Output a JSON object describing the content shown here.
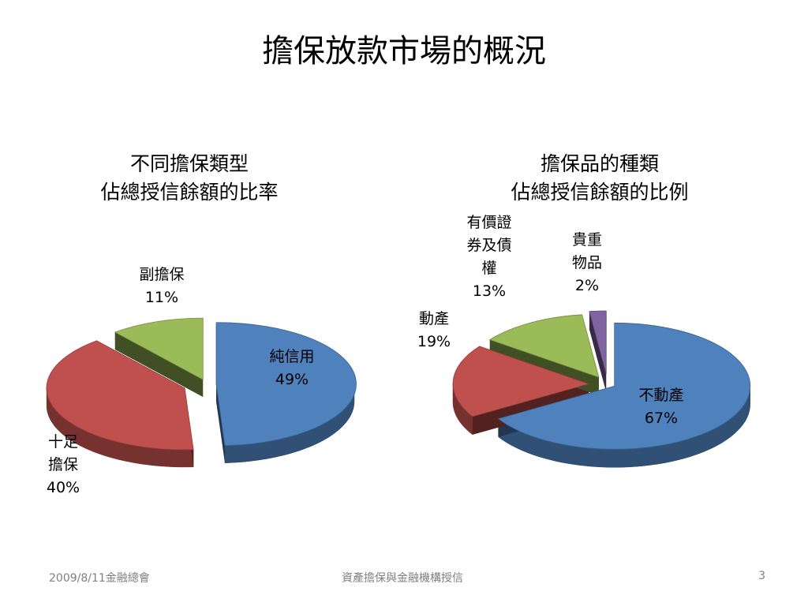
{
  "slide": {
    "title": "擔保放款市場的概況",
    "footer_left": "2009/8/11金融總會",
    "footer_center": "資產擔保與金融機構授信",
    "page_number": "3"
  },
  "chart_data": [
    {
      "type": "pie",
      "title_lines": [
        "不同擔保類型",
        "佔總授信餘額的比率"
      ],
      "slices": [
        {
          "label_lines": [
            "純信用"
          ],
          "value": 49,
          "value_label": "49%",
          "color": "#4f81bd"
        },
        {
          "label_lines": [
            "十足",
            "擔保"
          ],
          "value": 40,
          "value_label": "40%",
          "color": "#c0504d"
        },
        {
          "label_lines": [
            "副擔保"
          ],
          "value": 11,
          "value_label": "11%",
          "color": "#9bbb59"
        }
      ],
      "style": "3d exploded pie"
    },
    {
      "type": "pie",
      "title_lines": [
        "擔保品的種類",
        "佔總授信餘額的比例"
      ],
      "slices": [
        {
          "label_lines": [
            "不動產"
          ],
          "value": 67,
          "value_label": "67%",
          "color": "#4f81bd"
        },
        {
          "label_lines": [
            "動產"
          ],
          "value": 19,
          "value_label": "19%",
          "color": "#c0504d"
        },
        {
          "label_lines": [
            "有價證",
            "券及債",
            "權"
          ],
          "value": 13,
          "value_label": "13%",
          "color": "#9bbb59"
        },
        {
          "label_lines": [
            "貴重",
            "物品"
          ],
          "value": 2,
          "value_label": "2%",
          "color": "#8064a2"
        }
      ],
      "style": "3d exploded pie"
    }
  ]
}
